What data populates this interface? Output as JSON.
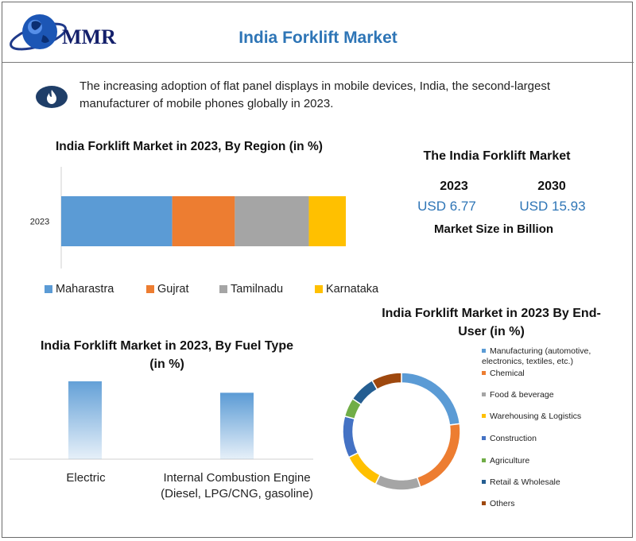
{
  "header": {
    "logo_text": "MMR",
    "title": "India Forklift Market"
  },
  "intro": {
    "icon": "flame-icon",
    "text": "The increasing adoption of flat panel displays in mobile devices, India, the second-largest manufacturer of mobile phones globally in 2023."
  },
  "market": {
    "title": "The India Forklift Market",
    "year1": "2023",
    "value1": "USD 6.77",
    "year2": "2030",
    "value2": "USD 15.93",
    "subtitle": "Market Size in Billion"
  },
  "chart_data": [
    {
      "type": "bar",
      "orientation": "horizontal",
      "stacked": true,
      "title": "India Forklift Market in 2023, By Region (in %)",
      "categories": [
        "2023"
      ],
      "series": [
        {
          "name": "Maharastra",
          "values": [
            39
          ],
          "color": "#5b9bd5"
        },
        {
          "name": "Gujrat",
          "values": [
            22
          ],
          "color": "#ed7d31"
        },
        {
          "name": "Tamilnadu",
          "values": [
            26
          ],
          "color": "#a5a5a5"
        },
        {
          "name": "Karnataka",
          "values": [
            13
          ],
          "color": "#ffc000"
        }
      ],
      "xlim": [
        0,
        100
      ],
      "legend": "bottom"
    },
    {
      "type": "bar",
      "title": "India Forklift Market in 2023, By Fuel Type (in %)",
      "categories": [
        "Electric",
        "Internal Combustion Engine (Diesel, LPG/CNG, gasoline)"
      ],
      "values": [
        55,
        44
      ],
      "ylim": [
        0,
        100
      ],
      "color": "#5b9bd5"
    },
    {
      "type": "pie",
      "donut": true,
      "title": "India Forklift Market in 2023 By End-User (in %)",
      "labels": [
        "Manufacturing (automotive, electronics, textiles, etc.)",
        "Chemical",
        "Food & beverage",
        "Warehousing & Logistics",
        "Construction",
        "Agriculture",
        "Retail & Wholesale",
        "Others"
      ],
      "values": [
        22,
        21,
        12,
        10,
        11,
        5,
        7,
        8
      ],
      "colors": [
        "#5b9bd5",
        "#ed7d31",
        "#a5a5a5",
        "#ffc000",
        "#4472c4",
        "#70ad47",
        "#255e91",
        "#9e480e"
      ],
      "legend": "right"
    }
  ]
}
